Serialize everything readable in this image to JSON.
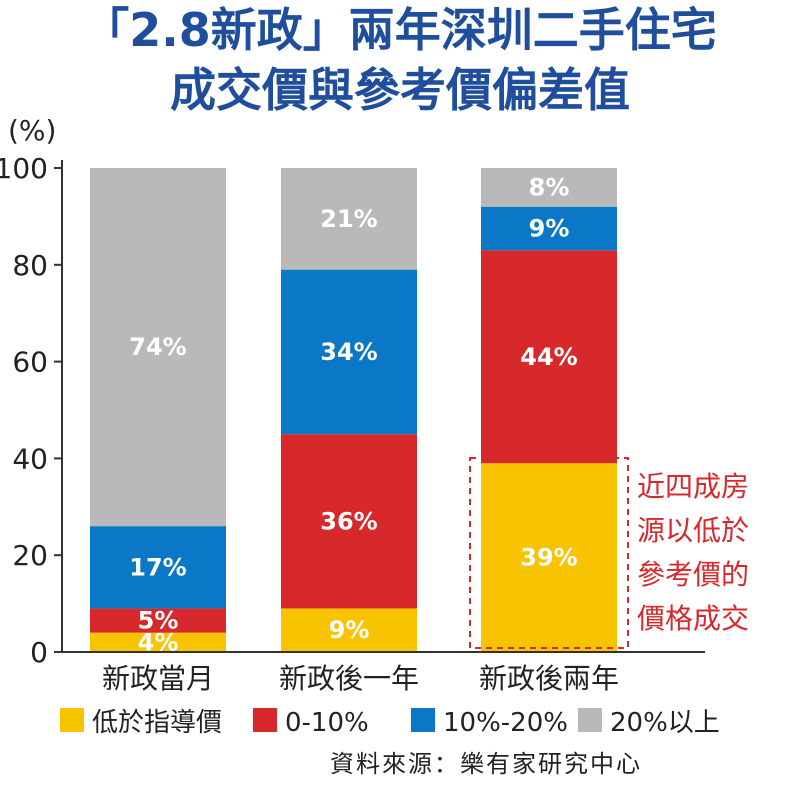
{
  "title_line1": "「2.8新政」兩年深圳二手住宅",
  "title_line2": "成交價與參考價偏差值",
  "unit_label": "(%)",
  "source": "資料來源：樂有家研究中心",
  "annotation_lines": [
    "近四成房",
    "源以低於",
    "參考價的",
    "價格成交"
  ],
  "colors": {
    "title": "#1f4e9c",
    "yellow": "#f8c300",
    "red": "#d7282b",
    "blue": "#0a78c6",
    "gray": "#b9b9b9",
    "annotation": "#d7282b"
  },
  "chart_data": {
    "type": "bar",
    "stacked": true,
    "categories": [
      "新政當月",
      "新政後一年",
      "新政後兩年"
    ],
    "series": [
      {
        "name": "低於指導價",
        "color": "#f8c300",
        "values": [
          4,
          9,
          39
        ],
        "labels": [
          "4%",
          "9%",
          "39%"
        ]
      },
      {
        "name": "0-10%",
        "color": "#d7282b",
        "values": [
          5,
          36,
          44
        ],
        "labels": [
          "5%",
          "36%",
          "44%"
        ]
      },
      {
        "name": "10%-20%",
        "color": "#0a78c6",
        "values": [
          17,
          34,
          9
        ],
        "labels": [
          "17%",
          "34%",
          "9%"
        ]
      },
      {
        "name": "20%以上",
        "color": "#b9b9b9",
        "values": [
          74,
          21,
          8
        ],
        "labels": [
          "74%",
          "21%",
          "8%"
        ]
      }
    ],
    "ylabel": "(%)",
    "ylim": [
      0,
      100
    ],
    "yticks": [
      0,
      20,
      40,
      60,
      80,
      100
    ],
    "legend": "bottom",
    "grid": false
  }
}
